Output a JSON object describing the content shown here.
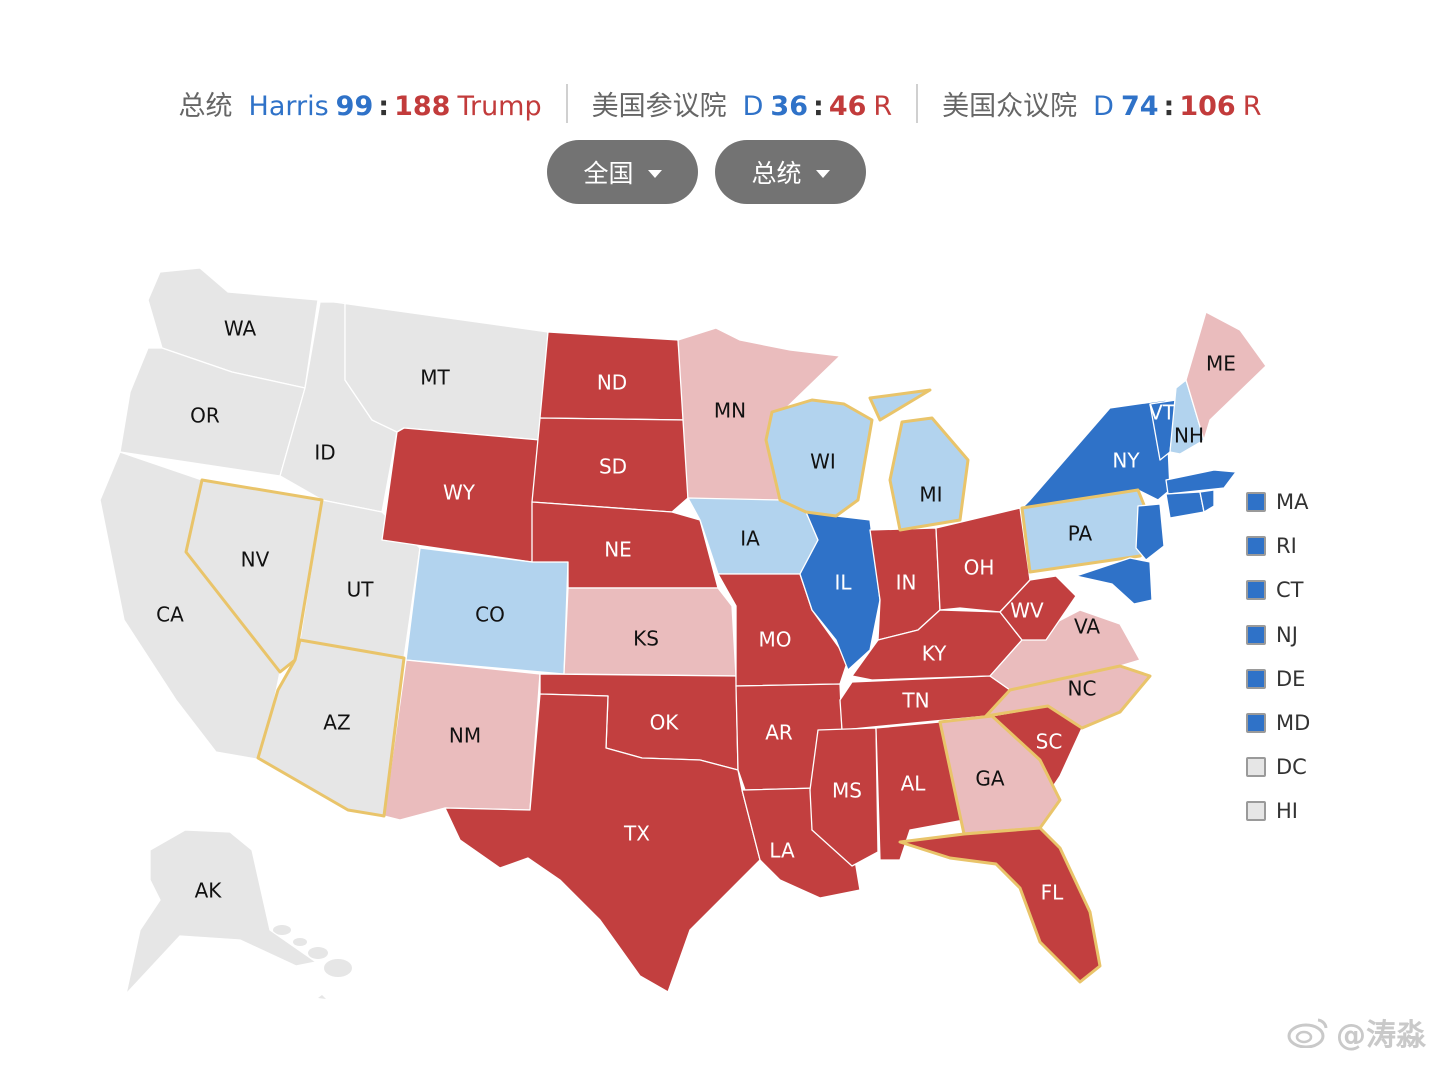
{
  "colors": {
    "dem_solid": "#2f72c8",
    "dem_lean": "#b2d3ee",
    "rep_solid": "#c23f3f",
    "rep_lean": "#eabcbd",
    "undecided": "#e6e6e6",
    "battleground_outline": "#e9c46a"
  },
  "scoreboard": {
    "president": {
      "title": "总统",
      "dem_name": "Harris",
      "dem_value": "99",
      "sep": ":",
      "rep_value": "188",
      "rep_name": "Trump"
    },
    "senate": {
      "title": "美国参议院",
      "dem_name": "D",
      "dem_value": "36",
      "sep": ":",
      "rep_value": "46",
      "rep_name": "R"
    },
    "house": {
      "title": "美国众议院",
      "dem_name": "D",
      "dem_value": "74",
      "sep": ":",
      "rep_value": "106",
      "rep_name": "R"
    }
  },
  "filters": {
    "region": {
      "label": "全国",
      "icon": "caret-down-icon"
    },
    "race": {
      "label": "总统",
      "icon": "caret-down-icon"
    }
  },
  "states": [
    {
      "id": "WA",
      "label": "WA",
      "status": "undecided"
    },
    {
      "id": "OR",
      "label": "OR",
      "status": "undecided"
    },
    {
      "id": "CA",
      "label": "CA",
      "status": "undecided"
    },
    {
      "id": "NV",
      "label": "NV",
      "status": "undecided",
      "battleground": true
    },
    {
      "id": "ID",
      "label": "ID",
      "status": "undecided"
    },
    {
      "id": "MT",
      "label": "MT",
      "status": "undecided"
    },
    {
      "id": "UT",
      "label": "UT",
      "status": "undecided"
    },
    {
      "id": "AZ",
      "label": "AZ",
      "status": "undecided",
      "battleground": true
    },
    {
      "id": "WY",
      "label": "WY",
      "status": "rep_solid"
    },
    {
      "id": "CO",
      "label": "CO",
      "status": "dem_lean"
    },
    {
      "id": "NM",
      "label": "NM",
      "status": "rep_lean"
    },
    {
      "id": "ND",
      "label": "ND",
      "status": "rep_solid"
    },
    {
      "id": "SD",
      "label": "SD",
      "status": "rep_solid"
    },
    {
      "id": "NE",
      "label": "NE",
      "status": "rep_solid"
    },
    {
      "id": "KS",
      "label": "KS",
      "status": "rep_lean"
    },
    {
      "id": "OK",
      "label": "OK",
      "status": "rep_solid"
    },
    {
      "id": "TX",
      "label": "TX",
      "status": "rep_solid"
    },
    {
      "id": "MN",
      "label": "MN",
      "status": "rep_lean"
    },
    {
      "id": "IA",
      "label": "IA",
      "status": "dem_lean"
    },
    {
      "id": "MO",
      "label": "MO",
      "status": "rep_solid"
    },
    {
      "id": "AR",
      "label": "AR",
      "status": "rep_solid"
    },
    {
      "id": "LA",
      "label": "LA",
      "status": "rep_solid"
    },
    {
      "id": "WI",
      "label": "WI",
      "status": "dem_lean",
      "battleground": true
    },
    {
      "id": "IL",
      "label": "IL",
      "status": "dem_solid"
    },
    {
      "id": "MI",
      "label": "MI",
      "status": "dem_lean",
      "battleground": true
    },
    {
      "id": "IN",
      "label": "IN",
      "status": "rep_solid"
    },
    {
      "id": "OH",
      "label": "OH",
      "status": "rep_solid"
    },
    {
      "id": "KY",
      "label": "KY",
      "status": "rep_solid"
    },
    {
      "id": "TN",
      "label": "TN",
      "status": "rep_solid"
    },
    {
      "id": "MS",
      "label": "MS",
      "status": "rep_solid"
    },
    {
      "id": "AL",
      "label": "AL",
      "status": "rep_solid"
    },
    {
      "id": "GA",
      "label": "GA",
      "status": "rep_lean",
      "battleground": true
    },
    {
      "id": "FL",
      "label": "FL",
      "status": "rep_solid",
      "battleground": true
    },
    {
      "id": "SC",
      "label": "SC",
      "status": "rep_solid"
    },
    {
      "id": "NC",
      "label": "NC",
      "status": "rep_lean",
      "battleground": true
    },
    {
      "id": "VA",
      "label": "VA",
      "status": "rep_lean"
    },
    {
      "id": "WV",
      "label": "WV",
      "status": "rep_solid"
    },
    {
      "id": "PA",
      "label": "PA",
      "status": "dem_lean",
      "battleground": true
    },
    {
      "id": "NY",
      "label": "NY",
      "status": "dem_solid"
    },
    {
      "id": "VT",
      "label": "VT",
      "status": "dem_solid"
    },
    {
      "id": "NH",
      "label": "NH",
      "status": "dem_lean"
    },
    {
      "id": "ME",
      "label": "ME",
      "status": "rep_lean"
    },
    {
      "id": "AK",
      "label": "AK",
      "status": "undecided"
    }
  ],
  "legend": [
    {
      "label": "MA",
      "status": "dem_solid"
    },
    {
      "label": "RI",
      "status": "dem_solid"
    },
    {
      "label": "CT",
      "status": "dem_solid"
    },
    {
      "label": "NJ",
      "status": "dem_solid"
    },
    {
      "label": "DE",
      "status": "dem_solid"
    },
    {
      "label": "MD",
      "status": "dem_solid"
    },
    {
      "label": "DC",
      "status": "undecided"
    },
    {
      "label": "HI",
      "status": "undecided"
    }
  ],
  "watermark": {
    "icon": "weibo-icon",
    "text": "@涛淼"
  }
}
